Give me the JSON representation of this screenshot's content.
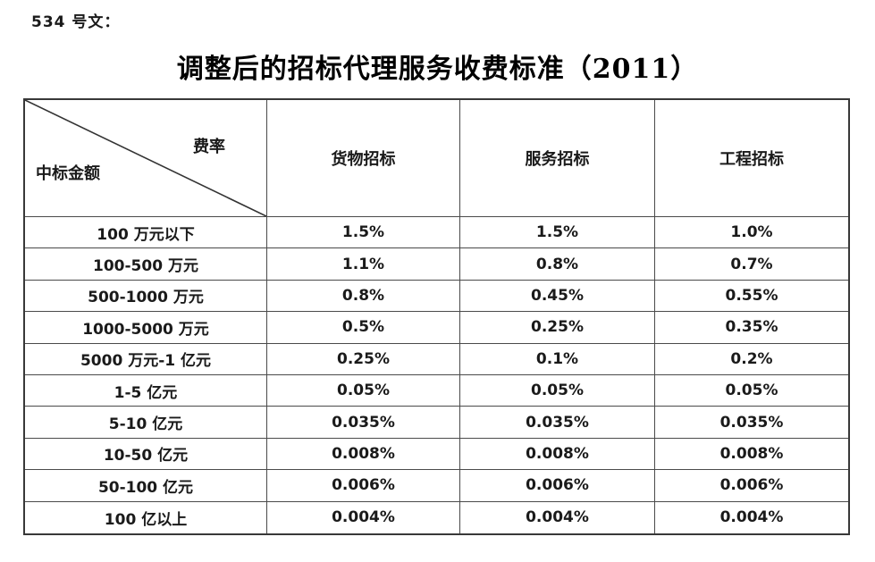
{
  "page": {
    "doc_label": "534 号文：",
    "title": "调整后的招标代理服务收费标准（2011）"
  },
  "table": {
    "corner": {
      "top_right": "费率",
      "bottom_left": "中标金额"
    },
    "columns": [
      "货物招标",
      "服务招标",
      "工程招标"
    ],
    "rows": [
      {
        "label": "100 万元以下",
        "values": [
          "1.5%",
          "1.5%",
          "1.0%"
        ]
      },
      {
        "label": "100-500 万元",
        "values": [
          "1.1%",
          "0.8%",
          "0.7%"
        ]
      },
      {
        "label": "500-1000 万元",
        "values": [
          "0.8%",
          "0.45%",
          "0.55%"
        ]
      },
      {
        "label": "1000-5000 万元",
        "values": [
          "0.5%",
          "0.25%",
          "0.35%"
        ]
      },
      {
        "label": "5000 万元-1 亿元",
        "values": [
          "0.25%",
          "0.1%",
          "0.2%"
        ]
      },
      {
        "label": "1-5 亿元",
        "values": [
          "0.05%",
          "0.05%",
          "0.05%"
        ]
      },
      {
        "label": "5-10 亿元",
        "values": [
          "0.035%",
          "0.035%",
          "0.035%"
        ]
      },
      {
        "label": "10-50 亿元",
        "values": [
          "0.008%",
          "0.008%",
          "0.008%"
        ]
      },
      {
        "label": "50-100 亿元",
        "values": [
          "0.006%",
          "0.006%",
          "0.006%"
        ]
      },
      {
        "label": "100 亿以上",
        "values": [
          "0.004%",
          "0.004%",
          "0.004%"
        ]
      }
    ],
    "colors": {
      "border": "#383838",
      "text": "#1a1a1a"
    }
  }
}
